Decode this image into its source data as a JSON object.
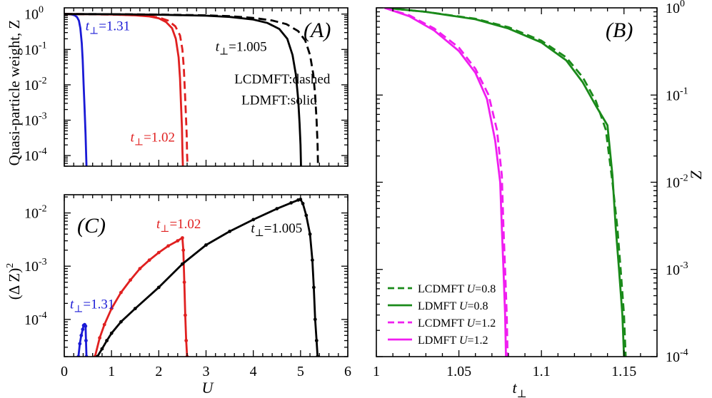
{
  "chart_data": [
    {
      "id": "A",
      "type": "line",
      "panel_label": "(A)",
      "ylabel": "Quasi-particle weight, Z",
      "xlabel": "",
      "xlim": [
        0,
        6
      ],
      "ylim": [
        5e-05,
        1.5
      ],
      "yscale": "log",
      "y_ticks": [
        {
          "value": 1,
          "label": "10",
          "exp": "0"
        },
        {
          "value": 0.1,
          "label": "10",
          "exp": "-1"
        },
        {
          "value": 0.01,
          "label": "10",
          "exp": "-2"
        },
        {
          "value": 0.001,
          "label": "10",
          "exp": "-3"
        },
        {
          "value": 0.0001,
          "label": "10",
          "exp": "-4"
        }
      ],
      "annotations": [
        {
          "key": "t131",
          "text": "t",
          "sub": "⊥",
          "rest": "=1.31",
          "color": "#1a1ad6",
          "at": [
            0.45,
            0.35
          ]
        },
        {
          "key": "t102",
          "text": "t",
          "sub": "⊥",
          "rest": "=1.02",
          "color": "#e02020",
          "at": [
            1.4,
            0.00025
          ]
        },
        {
          "key": "t1005",
          "text": "t",
          "sub": "⊥",
          "rest": "=1.005",
          "color": "#000000",
          "at": [
            3.2,
            0.09
          ]
        },
        {
          "key": "legend1",
          "text": "LCDMFT:dashed",
          "color": "#000000",
          "at": [
            3.6,
            0.011
          ]
        },
        {
          "key": "legend2",
          "text": "LDMFT:solid",
          "color": "#000000",
          "at": [
            3.75,
            0.0028
          ]
        }
      ],
      "series": [
        {
          "name": "t=1.31 LDMFT",
          "color": "#1a1ad6",
          "dash": false,
          "x": [
            0,
            0.08,
            0.16,
            0.22,
            0.27,
            0.31,
            0.34,
            0.37,
            0.39,
            0.41,
            0.43,
            0.45,
            0.47
          ],
          "y": [
            1,
            1,
            0.97,
            0.92,
            0.82,
            0.65,
            0.4,
            0.15,
            0.05,
            0.01,
            0.002,
            0.0004,
            5e-05
          ]
        },
        {
          "name": "t=1.02 LCDMFT",
          "color": "#e02020",
          "dash": true,
          "x": [
            0,
            0.5,
            1.0,
            1.5,
            1.8,
            2.0,
            2.2,
            2.35,
            2.45,
            2.5,
            2.53,
            2.55,
            2.57,
            2.59,
            2.6,
            2.61
          ],
          "y": [
            1,
            0.99,
            0.97,
            0.93,
            0.88,
            0.8,
            0.65,
            0.45,
            0.25,
            0.1,
            0.03,
            0.008,
            0.002,
            0.0004,
            0.0001,
            5e-05
          ]
        },
        {
          "name": "t=1.02 LDMFT",
          "color": "#e02020",
          "dash": false,
          "x": [
            0,
            0.5,
            1.0,
            1.5,
            1.8,
            2.0,
            2.15,
            2.28,
            2.36,
            2.42,
            2.45,
            2.47,
            2.49,
            2.5,
            2.51
          ],
          "y": [
            1,
            0.99,
            0.97,
            0.92,
            0.86,
            0.76,
            0.6,
            0.4,
            0.2,
            0.06,
            0.015,
            0.003,
            0.0006,
            0.00015,
            5e-05
          ]
        },
        {
          "name": "t=1.005 LCDMFT",
          "color": "#000000",
          "dash": true,
          "x": [
            0,
            1,
            2,
            3,
            3.5,
            4,
            4.4,
            4.7,
            4.95,
            5.1,
            5.2,
            5.27,
            5.31,
            5.34,
            5.36,
            5.37
          ],
          "y": [
            1,
            0.99,
            0.97,
            0.92,
            0.87,
            0.78,
            0.66,
            0.52,
            0.33,
            0.18,
            0.07,
            0.02,
            0.005,
            0.001,
            0.0002,
            5e-05
          ]
        },
        {
          "name": "t=1.005 LDMFT",
          "color": "#000000",
          "dash": false,
          "x": [
            0,
            1,
            2,
            3,
            3.5,
            4,
            4.3,
            4.55,
            4.72,
            4.83,
            4.9,
            4.95,
            4.98,
            5.0,
            5.01
          ],
          "y": [
            1,
            0.99,
            0.96,
            0.9,
            0.83,
            0.7,
            0.56,
            0.38,
            0.2,
            0.07,
            0.02,
            0.004,
            0.0008,
            0.0002,
            5e-05
          ]
        }
      ]
    },
    {
      "id": "B",
      "type": "line",
      "panel_label": "(B)",
      "ylabel": "Z",
      "xlabel": "t",
      "xlabel_sub": "⊥",
      "xlim": [
        1.0,
        1.17
      ],
      "ylim": [
        0.0001,
        1.0
      ],
      "yscale": "log",
      "x_ticks": [
        {
          "value": 1.0,
          "label": "1"
        },
        {
          "value": 1.05,
          "label": "1.05"
        },
        {
          "value": 1.1,
          "label": "1.1"
        },
        {
          "value": 1.15,
          "label": "1.15"
        }
      ],
      "y_ticks": [
        {
          "value": 1,
          "label": "10",
          "exp": "0"
        },
        {
          "value": 0.1,
          "label": "10",
          "exp": "-1"
        },
        {
          "value": 0.01,
          "label": "10",
          "exp": "-2"
        },
        {
          "value": 0.001,
          "label": "10",
          "exp": "-3"
        },
        {
          "value": 0.0001,
          "label": "10",
          "exp": "-4"
        }
      ],
      "legend": [
        {
          "label": "LCDMFT ",
          "ital": "U",
          "rest": "=0.8",
          "color": "#1a8a1a",
          "dash": true
        },
        {
          "label": "LDMFT ",
          "ital": "U",
          "rest": "=0.8",
          "color": "#1a8a1a",
          "dash": false
        },
        {
          "label": "LCDMFT ",
          "ital": "U",
          "rest": "=1.2",
          "color": "#f01ef0",
          "dash": true
        },
        {
          "label": "LDMFT ",
          "ital": "U",
          "rest": "=1.2",
          "color": "#f01ef0",
          "dash": false
        }
      ],
      "series": [
        {
          "name": "LCDMFT U=0.8",
          "color": "#1a8a1a",
          "dash": true,
          "x": [
            1.005,
            1.03,
            1.06,
            1.08,
            1.1,
            1.115,
            1.125,
            1.133,
            1.139,
            1.143,
            1.146,
            1.148,
            1.15,
            1.151
          ],
          "y": [
            1,
            0.9,
            0.75,
            0.6,
            0.42,
            0.27,
            0.16,
            0.085,
            0.04,
            0.01,
            0.003,
            0.001,
            0.0003,
            0.0001
          ]
        },
        {
          "name": "LDMFT U=0.8",
          "color": "#1a8a1a",
          "dash": false,
          "x": [
            1.005,
            1.03,
            1.06,
            1.08,
            1.1,
            1.115,
            1.125,
            1.133,
            1.14,
            1.143,
            1.145,
            1.147,
            1.149,
            1.15
          ],
          "y": [
            1,
            0.9,
            0.74,
            0.58,
            0.4,
            0.25,
            0.14,
            0.075,
            0.045,
            0.012,
            0.003,
            0.001,
            0.0003,
            0.0001
          ]
        },
        {
          "name": "LCDMFT U=1.2",
          "color": "#f01ef0",
          "dash": true,
          "x": [
            1.005,
            1.02,
            1.035,
            1.05,
            1.06,
            1.068,
            1.073,
            1.076,
            1.077,
            1.078,
            1.079,
            1.0795
          ],
          "y": [
            1,
            0.82,
            0.58,
            0.35,
            0.2,
            0.1,
            0.04,
            0.012,
            0.003,
            0.001,
            0.0003,
            0.0001
          ]
        },
        {
          "name": "LDMFT U=1.2",
          "color": "#f01ef0",
          "dash": false,
          "x": [
            1.005,
            1.02,
            1.035,
            1.05,
            1.06,
            1.067,
            1.072,
            1.075,
            1.076,
            1.077,
            1.078,
            1.0785
          ],
          "y": [
            1,
            0.8,
            0.55,
            0.32,
            0.18,
            0.09,
            0.03,
            0.01,
            0.003,
            0.001,
            0.0003,
            0.0001
          ]
        }
      ]
    },
    {
      "id": "C",
      "type": "line",
      "panel_label": "(C)",
      "ylabel": "(Δ Z)",
      "ylabel_sup": "2",
      "xlabel": "U",
      "xlim": [
        0,
        6
      ],
      "ylim": [
        2e-05,
        0.022
      ],
      "yscale": "log",
      "x_ticks": [
        {
          "value": 0,
          "label": "0"
        },
        {
          "value": 1,
          "label": "1"
        },
        {
          "value": 2,
          "label": "2"
        },
        {
          "value": 3,
          "label": "3"
        },
        {
          "value": 4,
          "label": "4"
        },
        {
          "value": 5,
          "label": "5"
        },
        {
          "value": 6,
          "label": "6"
        }
      ],
      "y_ticks": [
        {
          "value": 0.01,
          "label": "10",
          "exp": "-2"
        },
        {
          "value": 0.001,
          "label": "10",
          "exp": "-3"
        },
        {
          "value": 0.0001,
          "label": "10",
          "exp": "-4"
        }
      ],
      "annotations": [
        {
          "key": "c131",
          "text": "t",
          "sub": "⊥",
          "rest": "=1.31",
          "color": "#1a1ad6",
          "at": [
            0.12,
            0.00016
          ]
        },
        {
          "key": "c102",
          "text": "t",
          "sub": "⊥",
          "rest": "=1.02",
          "color": "#e02020",
          "at": [
            1.95,
            0.0052
          ]
        },
        {
          "key": "c1005",
          "text": "t",
          "sub": "⊥",
          "rest": "=1.005",
          "color": "#000000",
          "at": [
            3.95,
            0.0043
          ]
        }
      ],
      "series": [
        {
          "name": "t=1.31",
          "color": "#1a1ad6",
          "dash": false,
          "markers": true,
          "x": [
            0.3,
            0.33,
            0.36,
            0.39,
            0.41,
            0.43,
            0.45,
            0.46,
            0.47
          ],
          "y": [
            2e-05,
            3.5e-05,
            5e-05,
            6.5e-05,
            7.7e-05,
            8e-05,
            7.5e-05,
            4e-05,
            2e-05
          ]
        },
        {
          "name": "t=1.02",
          "color": "#e02020",
          "dash": false,
          "markers": true,
          "x": [
            0.65,
            0.75,
            0.85,
            1.0,
            1.2,
            1.4,
            1.6,
            1.8,
            2.0,
            2.2,
            2.4,
            2.5,
            2.52,
            2.54,
            2.56,
            2.58,
            2.6
          ],
          "y": [
            2e-05,
            4.5e-05,
            8e-05,
            0.00016,
            0.00032,
            0.00055,
            0.0009,
            0.0013,
            0.0018,
            0.0024,
            0.003,
            0.0034,
            0.002,
            0.0005,
            0.00012,
            4e-05,
            2e-05
          ]
        },
        {
          "name": "t=1.005",
          "color": "#000000",
          "dash": false,
          "markers": true,
          "x": [
            0.7,
            0.8,
            0.9,
            1.0,
            1.2,
            1.5,
            2.0,
            2.5,
            3.0,
            3.5,
            4.0,
            4.5,
            4.8,
            4.95,
            5.0,
            5.05,
            5.12,
            5.2,
            5.25,
            5.28,
            5.31,
            5.34,
            5.36
          ],
          "y": [
            2e-05,
            2.8e-05,
            4e-05,
            5.5e-05,
            9e-05,
            0.00016,
            0.0004,
            0.0011,
            0.0025,
            0.0045,
            0.0075,
            0.012,
            0.0155,
            0.0175,
            0.018,
            0.015,
            0.009,
            0.004,
            0.0013,
            0.0004,
            0.0001,
            4e-05,
            2e-05
          ]
        }
      ]
    }
  ]
}
